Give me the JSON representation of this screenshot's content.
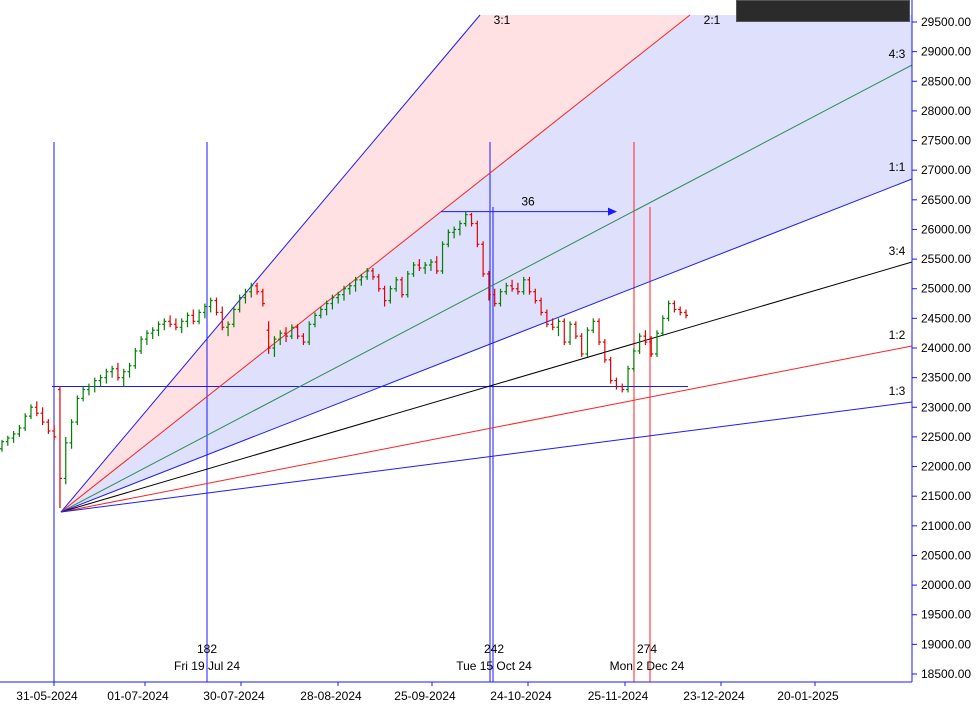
{
  "chart_data": {
    "type": "ohlc",
    "y_axis": {
      "ticks": [
        "29500.00",
        "29000.00",
        "28500.00",
        "28000.00",
        "27500.00",
        "27000.00",
        "26500.00",
        "26000.00",
        "25500.00",
        "25000.00",
        "24500.00",
        "24000.00",
        "23500.00",
        "23000.00",
        "22500.00",
        "22000.00",
        "21500.00",
        "21000.00",
        "20500.00",
        "20000.00",
        "19500.00",
        "19000.00",
        "18500.00"
      ],
      "ylim": [
        18450,
        29650
      ]
    },
    "x_axis": {
      "ticks": [
        "31-05-2024",
        "01-07-2024",
        "30-07-2024",
        "28-08-2024",
        "25-09-2024",
        "24-10-2024",
        "25-11-2024",
        "23-12-2024",
        "20-01-2025"
      ]
    },
    "gann_fan": {
      "origin": {
        "date": "2024-06-04",
        "price": 21200
      },
      "lines": [
        {
          "label": "3:1",
          "color": "#1a1aff",
          "end_price": 29600
        },
        {
          "label": "2:1",
          "color": "#ff2020",
          "end_price": 29600
        },
        {
          "label": "4:3",
          "color": "#2e8b57",
          "end_price": 28800
        },
        {
          "label": "1:1",
          "color": "#1a1aff",
          "end_price": 26900
        },
        {
          "label": "3:4",
          "color": "#000000",
          "end_price": 25480
        },
        {
          "label": "1:2",
          "color": "#ff2020",
          "end_price": 24050
        },
        {
          "label": "1:3",
          "color": "#1a1aff",
          "end_price": 23100
        }
      ]
    },
    "horizontal_line": {
      "price": 23350,
      "color": "#1a1aff"
    },
    "vertical_markers": [
      {
        "label": "182",
        "date_label": "Fri 19 Jul 24",
        "color": "#1a1aff"
      },
      {
        "label": "242",
        "date_label": "Tue 15 Oct 24",
        "color": "#1a1aff"
      },
      {
        "label": "274",
        "date_label": "Mon 2 Dec 24",
        "color": "#ff2020"
      }
    ],
    "measure": {
      "label": "36",
      "price": 26300
    },
    "candles": [
      {
        "o": 22300,
        "h": 22450,
        "l": 22250,
        "c": 22420
      },
      {
        "o": 22420,
        "h": 22520,
        "l": 22350,
        "c": 22480
      },
      {
        "o": 22480,
        "h": 22600,
        "l": 22400,
        "c": 22550
      },
      {
        "o": 22550,
        "h": 22700,
        "l": 22500,
        "c": 22650
      },
      {
        "o": 22650,
        "h": 22900,
        "l": 22600,
        "c": 22850
      },
      {
        "o": 22850,
        "h": 23050,
        "l": 22800,
        "c": 23000
      },
      {
        "o": 23000,
        "h": 23100,
        "l": 22850,
        "c": 22900
      },
      {
        "o": 22900,
        "h": 23000,
        "l": 22700,
        "c": 22750
      },
      {
        "o": 22750,
        "h": 22800,
        "l": 22550,
        "c": 22600
      },
      {
        "o": 22600,
        "h": 22700,
        "l": 22450,
        "c": 22500
      },
      {
        "o": 23300,
        "h": 23350,
        "l": 21300,
        "c": 21800
      },
      {
        "o": 21800,
        "h": 22500,
        "l": 21700,
        "c": 22400
      },
      {
        "o": 22400,
        "h": 22800,
        "l": 22300,
        "c": 22750
      },
      {
        "o": 22750,
        "h": 23200,
        "l": 22700,
        "c": 23150
      },
      {
        "o": 23150,
        "h": 23350,
        "l": 23100,
        "c": 23300
      },
      {
        "o": 23300,
        "h": 23400,
        "l": 23200,
        "c": 23350
      },
      {
        "o": 23350,
        "h": 23500,
        "l": 23250,
        "c": 23450
      },
      {
        "o": 23450,
        "h": 23550,
        "l": 23350,
        "c": 23500
      },
      {
        "o": 23500,
        "h": 23650,
        "l": 23400,
        "c": 23600
      },
      {
        "o": 23600,
        "h": 23700,
        "l": 23500,
        "c": 23650
      },
      {
        "o": 23650,
        "h": 23750,
        "l": 23450,
        "c": 23500
      },
      {
        "o": 23500,
        "h": 23650,
        "l": 23350,
        "c": 23600
      },
      {
        "o": 23600,
        "h": 23750,
        "l": 23500,
        "c": 23700
      },
      {
        "o": 23700,
        "h": 24000,
        "l": 23650,
        "c": 23950
      },
      {
        "o": 23950,
        "h": 24200,
        "l": 23900,
        "c": 24150
      },
      {
        "o": 24150,
        "h": 24300,
        "l": 24050,
        "c": 24250
      },
      {
        "o": 24250,
        "h": 24350,
        "l": 24150,
        "c": 24300
      },
      {
        "o": 24300,
        "h": 24450,
        "l": 24200,
        "c": 24400
      },
      {
        "o": 24400,
        "h": 24500,
        "l": 24300,
        "c": 24450
      },
      {
        "o": 24450,
        "h": 24550,
        "l": 24350,
        "c": 24400
      },
      {
        "o": 24400,
        "h": 24500,
        "l": 24300,
        "c": 24350
      },
      {
        "o": 24350,
        "h": 24500,
        "l": 24250,
        "c": 24450
      },
      {
        "o": 24450,
        "h": 24600,
        "l": 24350,
        "c": 24550
      },
      {
        "o": 24550,
        "h": 24650,
        "l": 24400,
        "c": 24450
      },
      {
        "o": 24450,
        "h": 24650,
        "l": 24400,
        "c": 24600
      },
      {
        "o": 24600,
        "h": 24750,
        "l": 24500,
        "c": 24700
      },
      {
        "o": 24700,
        "h": 24850,
        "l": 24600,
        "c": 24800
      },
      {
        "o": 24800,
        "h": 24850,
        "l": 24550,
        "c": 24600
      },
      {
        "o": 24600,
        "h": 24700,
        "l": 24300,
        "c": 24350
      },
      {
        "o": 24350,
        "h": 24450,
        "l": 24200,
        "c": 24400
      },
      {
        "o": 24400,
        "h": 24700,
        "l": 24350,
        "c": 24650
      },
      {
        "o": 24650,
        "h": 24900,
        "l": 24600,
        "c": 24850
      },
      {
        "o": 24850,
        "h": 25000,
        "l": 24750,
        "c": 24950
      },
      {
        "o": 24950,
        "h": 25100,
        "l": 24850,
        "c": 25050
      },
      {
        "o": 25050,
        "h": 25100,
        "l": 24900,
        "c": 24950
      },
      {
        "o": 24950,
        "h": 25000,
        "l": 24700,
        "c": 24750
      },
      {
        "o": 24300,
        "h": 24450,
        "l": 23900,
        "c": 24000
      },
      {
        "o": 24000,
        "h": 24200,
        "l": 23850,
        "c": 24150
      },
      {
        "o": 24150,
        "h": 24300,
        "l": 24050,
        "c": 24250
      },
      {
        "o": 24250,
        "h": 24350,
        "l": 24100,
        "c": 24200
      },
      {
        "o": 24200,
        "h": 24400,
        "l": 24150,
        "c": 24350
      },
      {
        "o": 24350,
        "h": 24400,
        "l": 24150,
        "c": 24200
      },
      {
        "o": 24200,
        "h": 24250,
        "l": 24050,
        "c": 24100
      },
      {
        "o": 24100,
        "h": 24450,
        "l": 24050,
        "c": 24400
      },
      {
        "o": 24400,
        "h": 24600,
        "l": 24350,
        "c": 24550
      },
      {
        "o": 24550,
        "h": 24700,
        "l": 24500,
        "c": 24650
      },
      {
        "o": 24650,
        "h": 24800,
        "l": 24550,
        "c": 24750
      },
      {
        "o": 24750,
        "h": 24900,
        "l": 24650,
        "c": 24850
      },
      {
        "o": 24850,
        "h": 24950,
        "l": 24750,
        "c": 24900
      },
      {
        "o": 24900,
        "h": 25050,
        "l": 24800,
        "c": 25000
      },
      {
        "o": 25000,
        "h": 25100,
        "l": 24900,
        "c": 25050
      },
      {
        "o": 25050,
        "h": 25200,
        "l": 24950,
        "c": 25150
      },
      {
        "o": 25150,
        "h": 25250,
        "l": 25050,
        "c": 25200
      },
      {
        "o": 25200,
        "h": 25350,
        "l": 25150,
        "c": 25300
      },
      {
        "o": 25300,
        "h": 25350,
        "l": 25150,
        "c": 25200
      },
      {
        "o": 25200,
        "h": 25250,
        "l": 24950,
        "c": 25000
      },
      {
        "o": 25000,
        "h": 25050,
        "l": 24700,
        "c": 24800
      },
      {
        "o": 24800,
        "h": 25050,
        "l": 24750,
        "c": 25000
      },
      {
        "o": 25000,
        "h": 25200,
        "l": 24950,
        "c": 25150
      },
      {
        "o": 25150,
        "h": 25200,
        "l": 24850,
        "c": 24900
      },
      {
        "o": 24900,
        "h": 25300,
        "l": 24850,
        "c": 25250
      },
      {
        "o": 25250,
        "h": 25450,
        "l": 25200,
        "c": 25400
      },
      {
        "o": 25400,
        "h": 25500,
        "l": 25300,
        "c": 25350
      },
      {
        "o": 25350,
        "h": 25450,
        "l": 25250,
        "c": 25400
      },
      {
        "o": 25400,
        "h": 25500,
        "l": 25300,
        "c": 25450
      },
      {
        "o": 25450,
        "h": 25550,
        "l": 25250,
        "c": 25300
      },
      {
        "o": 25300,
        "h": 25800,
        "l": 25250,
        "c": 25750
      },
      {
        "o": 25750,
        "h": 26000,
        "l": 25700,
        "c": 25950
      },
      {
        "o": 25950,
        "h": 26050,
        "l": 25850,
        "c": 26000
      },
      {
        "o": 26000,
        "h": 26150,
        "l": 25900,
        "c": 26100
      },
      {
        "o": 26100,
        "h": 26300,
        "l": 26050,
        "c": 26250
      },
      {
        "o": 26250,
        "h": 26280,
        "l": 26050,
        "c": 26100
      },
      {
        "o": 26100,
        "h": 26150,
        "l": 25700,
        "c": 25750
      },
      {
        "o": 25750,
        "h": 25800,
        "l": 25200,
        "c": 25250
      },
      {
        "o": 25250,
        "h": 25300,
        "l": 24800,
        "c": 24900
      },
      {
        "o": 24900,
        "h": 25000,
        "l": 24700,
        "c": 24750
      },
      {
        "o": 24750,
        "h": 25000,
        "l": 24700,
        "c": 24950
      },
      {
        "o": 24950,
        "h": 25100,
        "l": 24900,
        "c": 25050
      },
      {
        "o": 25050,
        "h": 25150,
        "l": 24950,
        "c": 25000
      },
      {
        "o": 25000,
        "h": 25100,
        "l": 24900,
        "c": 24950
      },
      {
        "o": 24950,
        "h": 25200,
        "l": 24900,
        "c": 25150
      },
      {
        "o": 25150,
        "h": 25200,
        "l": 24900,
        "c": 24950
      },
      {
        "o": 24950,
        "h": 25000,
        "l": 24750,
        "c": 24800
      },
      {
        "o": 24800,
        "h": 24850,
        "l": 24550,
        "c": 24600
      },
      {
        "o": 24600,
        "h": 24650,
        "l": 24350,
        "c": 24400
      },
      {
        "o": 24400,
        "h": 24500,
        "l": 24300,
        "c": 24350
      },
      {
        "o": 24350,
        "h": 24500,
        "l": 24200,
        "c": 24450
      },
      {
        "o": 24450,
        "h": 24500,
        "l": 24050,
        "c": 24100
      },
      {
        "o": 24100,
        "h": 24450,
        "l": 24050,
        "c": 24400
      },
      {
        "o": 24400,
        "h": 24450,
        "l": 24150,
        "c": 24200
      },
      {
        "o": 24200,
        "h": 24250,
        "l": 23850,
        "c": 23900
      },
      {
        "o": 23900,
        "h": 24350,
        "l": 23850,
        "c": 24300
      },
      {
        "o": 24300,
        "h": 24500,
        "l": 24250,
        "c": 24450
      },
      {
        "o": 24450,
        "h": 24500,
        "l": 24050,
        "c": 24100
      },
      {
        "o": 24100,
        "h": 24150,
        "l": 23750,
        "c": 23800
      },
      {
        "o": 23800,
        "h": 23850,
        "l": 23400,
        "c": 23450
      },
      {
        "o": 23450,
        "h": 23500,
        "l": 23300,
        "c": 23350
      },
      {
        "o": 23350,
        "h": 23400,
        "l": 23250,
        "c": 23300
      },
      {
        "o": 23300,
        "h": 23700,
        "l": 23250,
        "c": 23650
      },
      {
        "o": 23650,
        "h": 24000,
        "l": 23600,
        "c": 23950
      },
      {
        "o": 23950,
        "h": 24250,
        "l": 23900,
        "c": 24200
      },
      {
        "o": 24200,
        "h": 24300,
        "l": 24050,
        "c": 24100
      },
      {
        "o": 24100,
        "h": 24200,
        "l": 23850,
        "c": 23900
      },
      {
        "o": 23900,
        "h": 24300,
        "l": 23850,
        "c": 24250
      },
      {
        "o": 24250,
        "h": 24550,
        "l": 24200,
        "c": 24500
      },
      {
        "o": 24500,
        "h": 24800,
        "l": 24450,
        "c": 24750
      },
      {
        "o": 24750,
        "h": 24800,
        "l": 24600,
        "c": 24650
      },
      {
        "o": 24650,
        "h": 24700,
        "l": 24550,
        "c": 24600
      },
      {
        "o": 24600,
        "h": 24650,
        "l": 24500,
        "c": 24550
      }
    ]
  }
}
